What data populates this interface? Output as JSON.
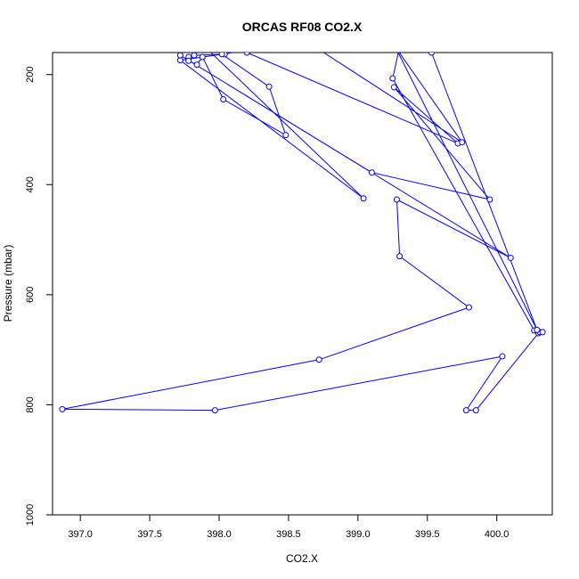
{
  "chart_data": {
    "type": "line",
    "title": "ORCAS RF08 CO2.X",
    "xlabel": "CO2.X",
    "ylabel": "Pressure (mbar)",
    "xlim": [
      396.8,
      400.4
    ],
    "ylim": [
      1000,
      160
    ],
    "y_reversed": true,
    "x_ticks": [
      "397.0",
      "397.5",
      "398.0",
      "398.5",
      "399.0",
      "399.5",
      "400.0"
    ],
    "y_ticks": [
      "200",
      "400",
      "600",
      "800",
      "1000"
    ],
    "line_color": "#0000ff",
    "marker": "open-circle",
    "grid": false,
    "series": [
      {
        "x": [
          398.18,
          398.04,
          397.82,
          397.78,
          397.78,
          397.84,
          397.88,
          398.03,
          398.48,
          398.36,
          398.02,
          397.72,
          399.04,
          397.92,
          398.2,
          399.72,
          399.26,
          399.95,
          399.1,
          397.72,
          400.1,
          399.28,
          399.3,
          399.8,
          398.72,
          396.87,
          397.97,
          400.04,
          399.78,
          399.85,
          400.3,
          400.31,
          400.33,
          400.27,
          399.25,
          399.3,
          398.73,
          398.22,
          398.55,
          398.68,
          399.75,
          399.27,
          400.29,
          399.53
        ],
        "y": [
          155,
          163,
          165,
          168,
          175,
          182,
          168,
          245,
          310,
          222,
          163,
          174,
          425,
          155,
          160,
          325,
          223,
          427,
          378,
          165,
          533,
          427,
          530,
          623,
          718,
          808,
          810,
          712,
          810,
          810,
          670,
          668,
          668,
          665,
          207,
          150,
          148,
          142,
          150,
          148,
          323,
          150,
          664,
          160
        ]
      }
    ]
  }
}
